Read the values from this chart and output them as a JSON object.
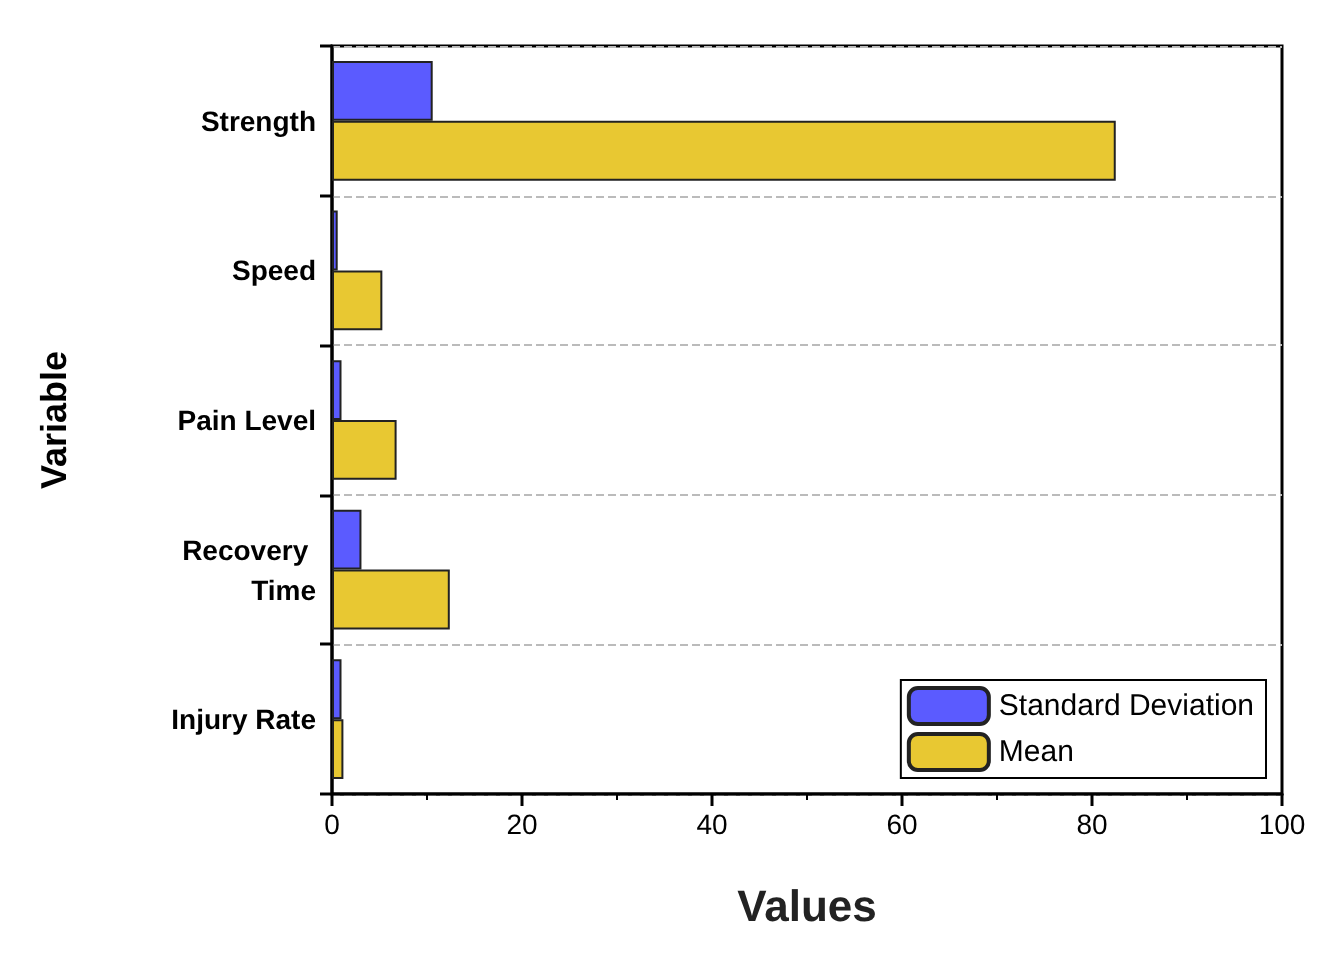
{
  "chart_data": {
    "type": "bar",
    "orientation": "horizontal",
    "xlabel": "Values",
    "ylabel": "Variable",
    "categories": [
      "Strength",
      "Speed",
      "Pain Level",
      "Recovery Time",
      "Injury Rate"
    ],
    "series": [
      {
        "name": "Standard Deviation",
        "color": "#5b5bff",
        "values": [
          10.6,
          0.6,
          1,
          3.1,
          1
        ]
      },
      {
        "name": "Mean",
        "color": "#e8c832",
        "values": [
          82.5,
          5.3,
          6.8,
          12.4,
          1.2
        ]
      }
    ],
    "xlim": [
      0,
      100
    ],
    "xticks": [
      0,
      20,
      40,
      60,
      80,
      100
    ],
    "grid": "y",
    "legend": "bottom right"
  }
}
